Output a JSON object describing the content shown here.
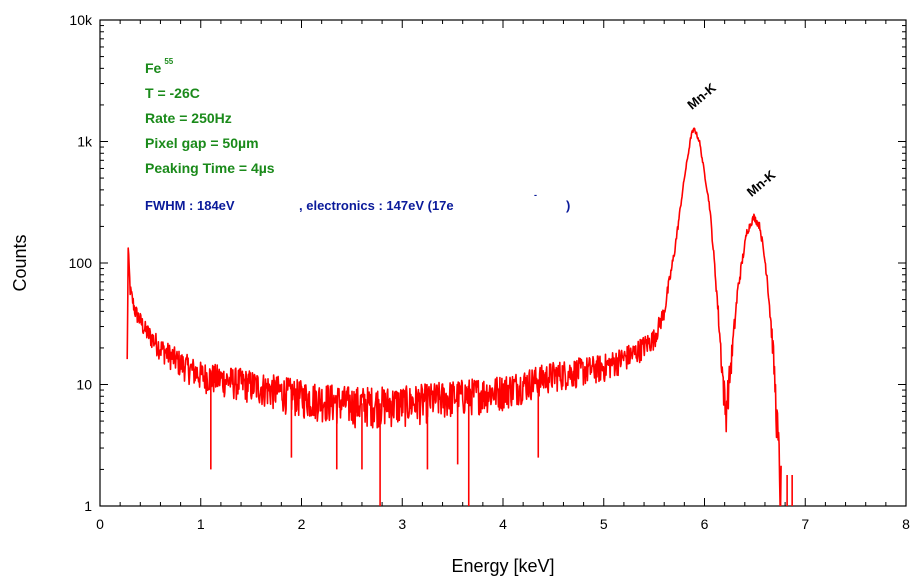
{
  "chart_data": {
    "type": "line",
    "xlabel": "Energy [keV]",
    "ylabel": "Counts",
    "xlim": [
      0,
      8
    ],
    "ylim": [
      1,
      10000
    ],
    "yscale": "log",
    "grid": false,
    "x_ticks": [
      "0",
      "1",
      "2",
      "3",
      "4",
      "5",
      "6",
      "7",
      "8"
    ],
    "y_ticks": [
      "1",
      "10",
      "100",
      "1k",
      "10k"
    ],
    "series_color": "#ff0000",
    "annotations": {
      "source": "Fe",
      "source_sup": "55",
      "temperature": "T = -26C",
      "rate": "Rate = 250Hz",
      "pixel_gap": "Pixel gap = 50µm",
      "peaking_time": "Peaking Time = 4µs",
      "fwhm_a": "FWHM : 184eV",
      "fwhm_b": ", electronics : 147eV (17e",
      "fwhm_sup": "-",
      "fwhm_c": ")"
    },
    "peak_labels": [
      {
        "text": "Mn-K",
        "x": 5.9,
        "y": 1250
      },
      {
        "text": "Mn-K",
        "x": 6.49,
        "y": 240
      }
    ],
    "spectrum_shape": [
      {
        "x": 0.27,
        "y": 15
      },
      {
        "x": 0.28,
        "y": 130
      },
      {
        "x": 0.3,
        "y": 60
      },
      {
        "x": 0.35,
        "y": 40
      },
      {
        "x": 0.45,
        "y": 28
      },
      {
        "x": 0.6,
        "y": 20
      },
      {
        "x": 0.8,
        "y": 15
      },
      {
        "x": 1.0,
        "y": 12
      },
      {
        "x": 1.5,
        "y": 10
      },
      {
        "x": 2.0,
        "y": 8
      },
      {
        "x": 2.5,
        "y": 7
      },
      {
        "x": 3.0,
        "y": 7
      },
      {
        "x": 3.5,
        "y": 8
      },
      {
        "x": 4.0,
        "y": 9
      },
      {
        "x": 4.5,
        "y": 12
      },
      {
        "x": 5.0,
        "y": 14
      },
      {
        "x": 5.3,
        "y": 18
      },
      {
        "x": 5.5,
        "y": 24
      },
      {
        "x": 5.6,
        "y": 40
      },
      {
        "x": 5.7,
        "y": 120
      },
      {
        "x": 5.8,
        "y": 500
      },
      {
        "x": 5.87,
        "y": 1150
      },
      {
        "x": 5.9,
        "y": 1270
      },
      {
        "x": 5.95,
        "y": 1000
      },
      {
        "x": 6.05,
        "y": 300
      },
      {
        "x": 6.12,
        "y": 60
      },
      {
        "x": 6.18,
        "y": 12
      },
      {
        "x": 6.21,
        "y": 6
      },
      {
        "x": 6.26,
        "y": 14
      },
      {
        "x": 6.33,
        "y": 60
      },
      {
        "x": 6.42,
        "y": 180
      },
      {
        "x": 6.49,
        "y": 240
      },
      {
        "x": 6.55,
        "y": 200
      },
      {
        "x": 6.62,
        "y": 80
      },
      {
        "x": 6.68,
        "y": 20
      },
      {
        "x": 6.72,
        "y": 5
      },
      {
        "x": 6.76,
        "y": 1
      }
    ],
    "dropouts": [
      {
        "x": 1.1,
        "y": 2
      },
      {
        "x": 1.9,
        "y": 2.5
      },
      {
        "x": 2.35,
        "y": 2
      },
      {
        "x": 2.6,
        "y": 2
      },
      {
        "x": 2.78,
        "y": 1
      },
      {
        "x": 3.25,
        "y": 2
      },
      {
        "x": 3.55,
        "y": 2.2
      },
      {
        "x": 3.66,
        "y": 1
      },
      {
        "x": 4.35,
        "y": 2.5
      }
    ],
    "tail_spikes": [
      {
        "x": 6.82,
        "y": 1.8
      },
      {
        "x": 6.87,
        "y": 1.8
      }
    ]
  }
}
